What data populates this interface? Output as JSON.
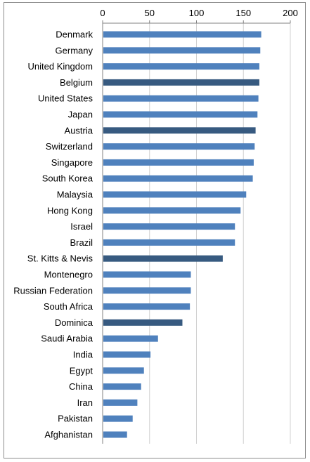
{
  "chart_data": {
    "type": "bar",
    "orientation": "horizontal",
    "title": "",
    "xlabel": "",
    "ylabel": "",
    "xlim": [
      0,
      200
    ],
    "x_ticks": [
      "0",
      "50",
      "100",
      "150",
      "200"
    ],
    "x_axis_position": "top",
    "grid": "vertical",
    "legend": "none",
    "categories": [
      "Denmark",
      "Germany",
      "United Kingdom",
      "Belgium",
      "United States",
      "Japan",
      "Austria",
      "Switzerland",
      "Singapore",
      "South Korea",
      "Malaysia",
      "Hong Kong",
      "Israel",
      "Brazil",
      "St. Kitts & Nevis",
      "Montenegro",
      "Russian Federation",
      "South Africa",
      "Dominica",
      "Saudi Arabia",
      "India",
      "Egypt",
      "China",
      "Iran",
      "Pakistan",
      "Afghanistan"
    ],
    "values": [
      169,
      168,
      167,
      167,
      166,
      165,
      163,
      162,
      161,
      160,
      153,
      147,
      141,
      141,
      128,
      94,
      94,
      93,
      85,
      59,
      51,
      44,
      41,
      37,
      32,
      26
    ],
    "highlighted": [
      "Belgium",
      "Austria",
      "St. Kitts & Nevis",
      "Dominica"
    ],
    "colors": {
      "bar": "#4f81bd",
      "highlight": "#375a80",
      "grid": "#d0d0d0"
    }
  }
}
